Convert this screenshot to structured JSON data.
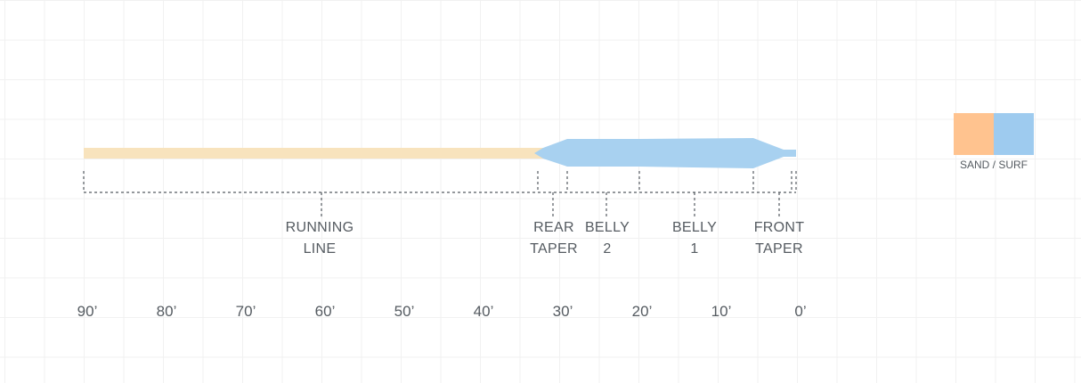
{
  "colors": {
    "running_line": "#f8e3bd",
    "head": "#a8d1f0",
    "sand": "#ffc38f",
    "surf": "#9ecbef",
    "dotted": "#555b61"
  },
  "sections": [
    {
      "line1": "RUNNING",
      "line2": "LINE"
    },
    {
      "line1": "REAR",
      "line2": "TAPER"
    },
    {
      "line1": "BELLY",
      "line2": "2"
    },
    {
      "line1": "BELLY",
      "line2": "1"
    },
    {
      "line1": "FRONT",
      "line2": "TAPER"
    }
  ],
  "axis_ticks": [
    "90’",
    "80’",
    "70’",
    "60’",
    "50’",
    "40’",
    "30’",
    "20’",
    "10’",
    "0’"
  ],
  "legend": {
    "label": "SAND / SURF"
  }
}
